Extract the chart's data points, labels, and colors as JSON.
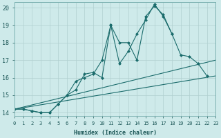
{
  "xlabel": "Humidex (Indice chaleur)",
  "bg_color": "#ceeaea",
  "grid_color": "#b0d0d0",
  "line_color": "#1a6b6b",
  "xlim": [
    0,
    23
  ],
  "ylim": [
    13.8,
    20.3
  ],
  "yticks": [
    14,
    15,
    16,
    17,
    18,
    19,
    20
  ],
  "xticks": [
    0,
    1,
    2,
    3,
    4,
    5,
    6,
    7,
    8,
    9,
    10,
    11,
    12,
    13,
    14,
    15,
    16,
    17,
    18,
    19,
    20,
    21,
    22,
    23
  ],
  "line1_x": [
    0,
    1,
    2,
    3,
    4,
    5,
    6,
    7,
    8,
    9,
    10,
    11,
    12,
    13,
    14,
    15,
    16,
    17,
    18,
    19,
    20,
    21,
    22
  ],
  "line1_y": [
    14.2,
    14.2,
    14.1,
    14.0,
    14.0,
    14.5,
    15.0,
    15.8,
    16.0,
    16.2,
    17.0,
    19.0,
    18.0,
    18.0,
    17.0,
    19.5,
    20.1,
    19.6,
    18.5,
    17.3,
    17.2,
    16.8,
    16.1
  ],
  "line2_x": [
    0,
    1,
    2,
    3,
    4,
    5,
    6,
    7,
    8,
    9,
    10,
    11,
    12,
    13,
    14,
    15,
    16,
    17,
    18
  ],
  "line2_y": [
    14.2,
    14.2,
    14.1,
    14.0,
    14.0,
    14.5,
    15.0,
    15.3,
    16.2,
    16.3,
    16.0,
    19.0,
    16.8,
    17.5,
    18.5,
    19.3,
    20.2,
    19.5,
    18.5
  ],
  "line3_x": [
    0,
    23
  ],
  "line3_y": [
    14.2,
    17.0
  ],
  "line4_x": [
    0,
    23
  ],
  "line4_y": [
    14.2,
    16.1
  ]
}
